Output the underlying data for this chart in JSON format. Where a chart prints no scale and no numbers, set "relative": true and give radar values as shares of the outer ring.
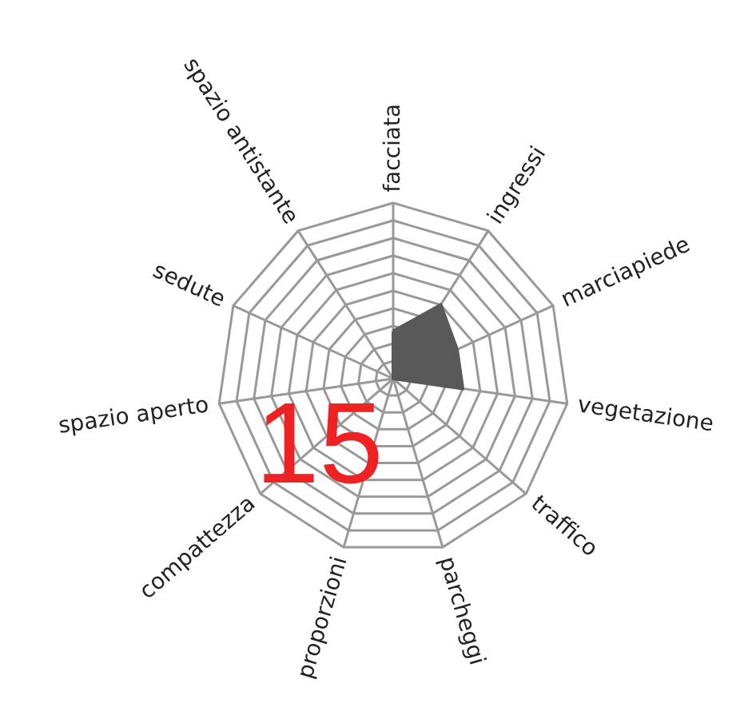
{
  "chart_data": {
    "type": "radar",
    "relative": true,
    "grid": true,
    "categories": [
      "facciata",
      "ingressi",
      "marciapiede",
      "vegetazione",
      "traffico",
      "parcheggi",
      "proporzioni",
      "compattezza",
      "spazio aperto",
      "sedute",
      "spazio antistante"
    ],
    "series": [
      {
        "color": "#595959",
        "values": [
          0.27,
          0.5,
          0.4,
          0.4,
          0,
          0,
          0,
          0,
          0,
          0,
          0
        ]
      }
    ],
    "annotations": [
      "15"
    ]
  }
}
